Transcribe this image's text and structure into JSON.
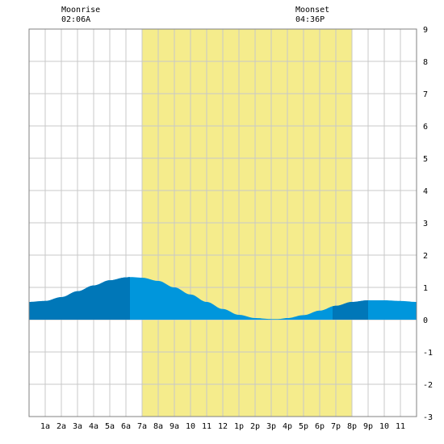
{
  "moon": {
    "moonrise_label": "Moonrise",
    "moonrise_time": "02:06A",
    "moonset_label": "Moonset",
    "moonset_time": "04:36P"
  },
  "colors": {
    "daylight": "#f5ec8c",
    "tide_night": "#0077b8",
    "tide_day": "#0096dc",
    "grid": "#c8c8c8",
    "border": "#808080"
  },
  "chart_data": {
    "type": "area",
    "title": "",
    "xlabel": "",
    "ylabel": "",
    "xlim": [
      0,
      24
    ],
    "ylim": [
      -3,
      9
    ],
    "grid": true,
    "x_tick_labels": [
      "1a",
      "2a",
      "3a",
      "4a",
      "5a",
      "6a",
      "7a",
      "8a",
      "9a",
      "10",
      "11",
      "12",
      "1p",
      "2p",
      "3p",
      "4p",
      "5p",
      "6p",
      "7p",
      "8p",
      "9p",
      "10",
      "11"
    ],
    "y_ticks": [
      9,
      8,
      7,
      6,
      5,
      4,
      3,
      2,
      1,
      0,
      -1,
      -2,
      -3
    ],
    "daylight": {
      "start": 7,
      "end": 20
    },
    "night_shading": [
      [
        0,
        6.25
      ],
      [
        18.8,
        21
      ]
    ],
    "moonrise_hour": 2.1,
    "moonset_hour": 16.6,
    "series": [
      {
        "x": [
          0,
          1,
          2,
          3,
          4,
          5,
          6,
          6.25,
          7,
          8,
          9,
          10,
          11,
          12,
          13,
          14,
          15,
          15.4,
          16,
          17,
          18,
          19,
          20,
          21,
          22,
          23,
          24
        ],
        "values": [
          0.55,
          0.58,
          0.7,
          0.88,
          1.06,
          1.22,
          1.31,
          1.32,
          1.3,
          1.2,
          1.0,
          0.78,
          0.55,
          0.33,
          0.15,
          0.05,
          0.02,
          0.02,
          0.05,
          0.14,
          0.28,
          0.43,
          0.55,
          0.6,
          0.6,
          0.58,
          0.55
        ]
      }
    ]
  }
}
